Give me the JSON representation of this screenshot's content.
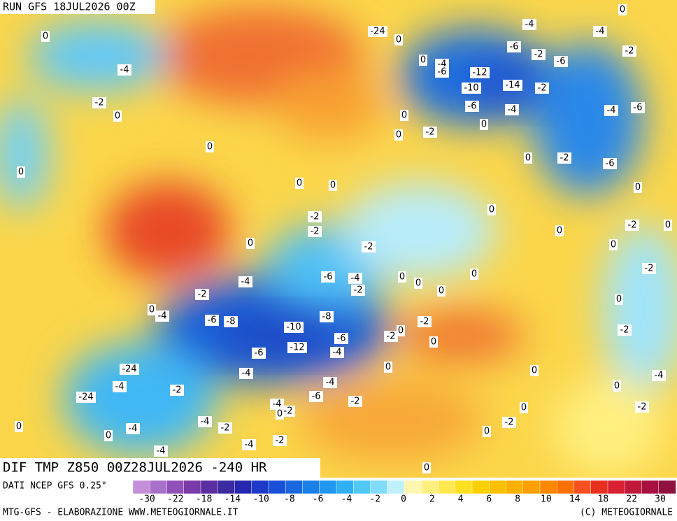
{
  "header": {
    "run": "RUN GFS 18JUL2026 00Z"
  },
  "title": "DIF TMP Z850 00Z28JUL2026 -240 HR",
  "source": "DATI NCEP GFS 0.25°",
  "footer": {
    "left": "MTG-GFS - ELABORAZIONE WWW.METEOGIORNALE.IT",
    "right": "(C) METEOGIORNALE"
  },
  "legend": {
    "colors": [
      "#c38fd8",
      "#a870c8",
      "#9050b8",
      "#7a3aa8",
      "#5a2ea0",
      "#3c2aa0",
      "#2626b0",
      "#1e3ac8",
      "#1a50d8",
      "#1a68e0",
      "#1a80e8",
      "#2098f0",
      "#30b0f5",
      "#50c8f8",
      "#80dcfa",
      "#c0f0fc",
      "#fff6b0",
      "#fff080",
      "#ffe850",
      "#ffe020",
      "#ffd000",
      "#ffc000",
      "#ffb000",
      "#ffa000",
      "#ff8800",
      "#ff7000",
      "#f85020",
      "#e83020",
      "#d82030",
      "#c01838",
      "#a81040",
      "#901040"
    ],
    "labels": [
      -30,
      -22,
      -18,
      -14,
      -10,
      -8,
      -6,
      -4,
      -2,
      0,
      2,
      4,
      6,
      8,
      10,
      14,
      18,
      22,
      30
    ]
  },
  "contour_labels": [
    0,
    -4,
    -2,
    0,
    0,
    0,
    -24,
    0,
    -4,
    -4,
    0,
    -2,
    -6,
    -2,
    -6,
    -4,
    -6,
    0,
    -12,
    -10,
    -14,
    -2,
    -6,
    -4,
    0,
    -4,
    -6,
    -2,
    0,
    0,
    -6,
    -2,
    0,
    0,
    0,
    0,
    -2,
    -2,
    0,
    0,
    -2,
    0,
    -2,
    0,
    -4,
    -6,
    -4,
    -2,
    0,
    0,
    0,
    0,
    -2,
    0,
    -4,
    -6,
    -8,
    -10,
    -8,
    -6,
    -12,
    -2,
    0,
    -2,
    0,
    -6,
    -4,
    -4,
    -4,
    0,
    -24,
    -4,
    -2,
    -24,
    -6,
    -2,
    -4,
    -2,
    0,
    -4,
    -2,
    -4,
    0,
    0,
    -4,
    -2,
    -4,
    0,
    -2,
    0,
    0,
    0,
    -4,
    -2,
    -2,
    0,
    -2,
    0,
    0
  ]
}
